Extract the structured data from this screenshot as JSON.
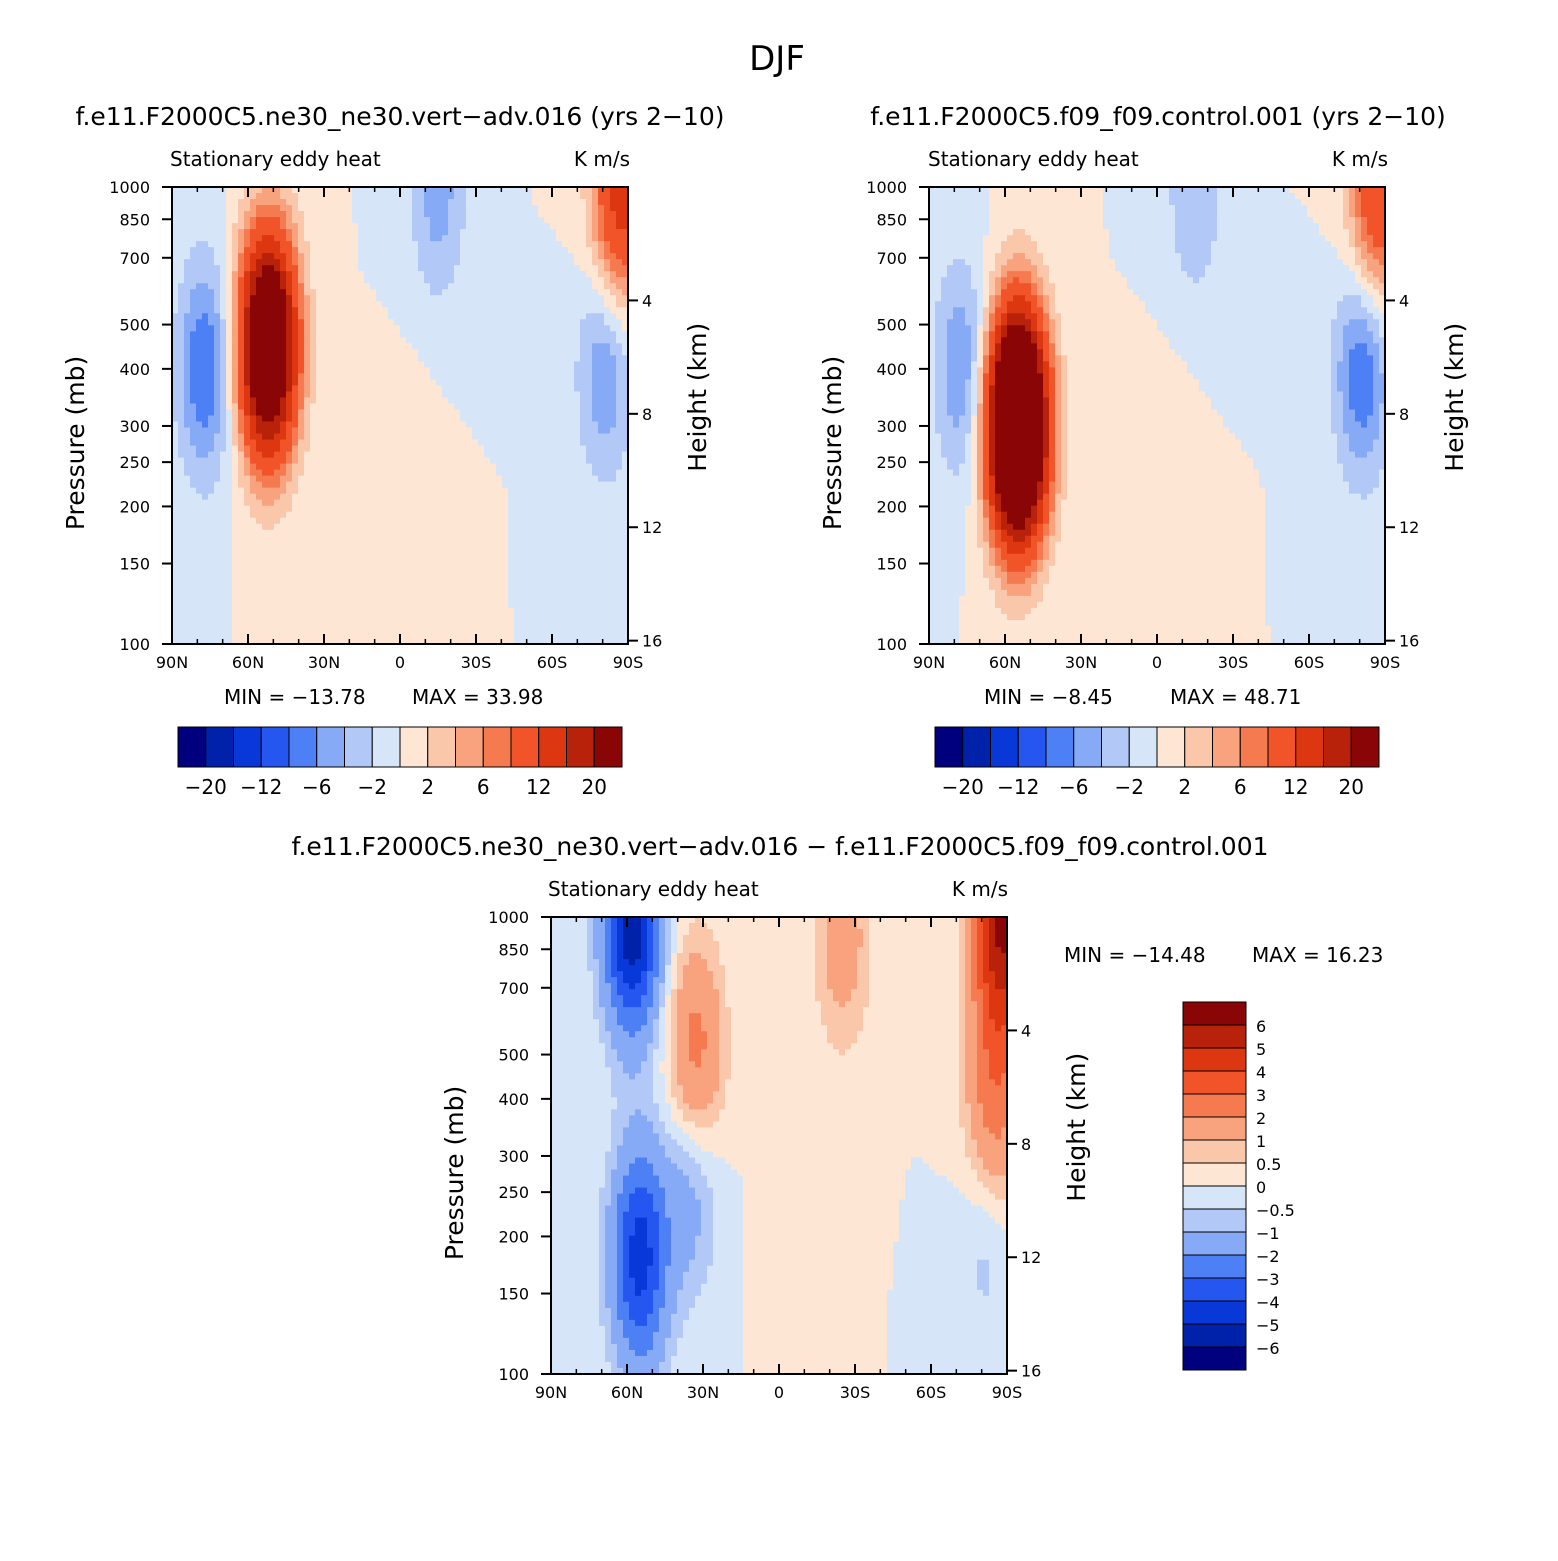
{
  "figure": {
    "title": "DJF"
  },
  "colors": {
    "absolute_scale": [
      "#00007f",
      "#0022aa",
      "#0838d8",
      "#2656f0",
      "#4e80f5",
      "#86aaf6",
      "#b2c8f6",
      "#d6e6f8",
      "#fde6d4",
      "#fbc7aa",
      "#f9a27e",
      "#f57a50",
      "#f05428",
      "#dd3712",
      "#b8220b",
      "#8a0606"
    ],
    "difference_scale": [
      "#00007f",
      "#0022aa",
      "#0838d8",
      "#2656f0",
      "#4e80f5",
      "#86aaf6",
      "#b2c8f6",
      "#d6e6f8",
      "#fde6d4",
      "#fbc7aa",
      "#f9a27e",
      "#f57a50",
      "#f05428",
      "#dd3712",
      "#b8220b",
      "#8a0606"
    ]
  },
  "chart_data": [
    {
      "type": "heatmap",
      "title": "f.e11.F2000C5.ne30_ne30.vert−adv.016 (yrs 2−10)",
      "subtitle_left": "Stationary eddy heat",
      "subtitle_right": "K m/s",
      "ylabel": "Pressure (mb)",
      "y2label": "Height (km)",
      "x_ticks": [
        "90N",
        "60N",
        "30N",
        "0",
        "30S",
        "60S",
        "90S"
      ],
      "y_ticks": [
        "100",
        "150",
        "200",
        "250",
        "300",
        "400",
        "500",
        "700",
        "850",
        "1000"
      ],
      "y_tick_values": [
        100,
        150,
        200,
        250,
        300,
        400,
        500,
        700,
        850,
        1000
      ],
      "y2_ticks": [
        "16",
        "12",
        "8",
        "4"
      ],
      "y2_tick_values": [
        16,
        12,
        8,
        4
      ],
      "min_label": "MIN = −13.78",
      "max_label": "MAX =  33.98",
      "min": -13.78,
      "max": 33.98,
      "contour_levels": [
        -20,
        -16,
        -12,
        -8,
        -6,
        -4,
        -2,
        0,
        2,
        4,
        6,
        8,
        12,
        16,
        20
      ],
      "colorbar_labels": [
        "−20",
        "−12",
        "−6",
        "−2",
        "2",
        "6",
        "12",
        "20"
      ],
      "features": [
        {
          "lat": 52,
          "p": 450,
          "value": 33.98
        },
        {
          "lat": 77,
          "p": 400,
          "value": -8
        },
        {
          "lat": -81,
          "p": 400,
          "value": -6
        },
        {
          "lat": -15,
          "p": 980,
          "value": -5
        },
        {
          "lat": -87,
          "p": 950,
          "value": 14
        },
        {
          "lat": -5,
          "p": 250,
          "value": 0.8
        }
      ]
    },
    {
      "type": "heatmap",
      "title": "f.e11.F2000C5.f09_f09.control.001 (yrs 2−10)",
      "subtitle_left": "Stationary eddy heat",
      "subtitle_right": "K m/s",
      "ylabel": "Pressure (mb)",
      "y2label": "Height (km)",
      "x_ticks": [
        "90N",
        "60N",
        "30N",
        "0",
        "30S",
        "60S",
        "90S"
      ],
      "y_ticks": [
        "100",
        "150",
        "200",
        "250",
        "300",
        "400",
        "500",
        "700",
        "850",
        "1000"
      ],
      "y_tick_values": [
        100,
        150,
        200,
        250,
        300,
        400,
        500,
        700,
        850,
        1000
      ],
      "y2_ticks": [
        "16",
        "12",
        "8",
        "4"
      ],
      "y2_tick_values": [
        16,
        12,
        8,
        4
      ],
      "min_label": "MIN =   −8.45",
      "max_label": "MAX =  48.71",
      "min": -8.45,
      "max": 48.71,
      "contour_levels": [
        -20,
        -16,
        -12,
        -8,
        -6,
        -4,
        -2,
        0,
        2,
        4,
        6,
        8,
        12,
        16,
        20
      ],
      "colorbar_labels": [
        "−20",
        "−12",
        "−6",
        "−2",
        "2",
        "6",
        "12",
        "20"
      ],
      "features": [
        {
          "lat": 55,
          "p": 300,
          "value": 48.71
        },
        {
          "lat": 77,
          "p": 400,
          "value": -6
        },
        {
          "lat": -81,
          "p": 400,
          "value": -8
        },
        {
          "lat": -15,
          "p": 980,
          "value": -4
        },
        {
          "lat": -87,
          "p": 950,
          "value": 12
        },
        {
          "lat": -5,
          "p": 250,
          "value": 0.8
        }
      ]
    },
    {
      "type": "heatmap",
      "title": "f.e11.F2000C5.ne30_ne30.vert−adv.016 − f.e11.F2000C5.f09_f09.control.001",
      "subtitle_left": "Stationary eddy heat",
      "subtitle_right": "K m/s",
      "ylabel": "Pressure (mb)",
      "y2label": "Height (km)",
      "x_ticks": [
        "90N",
        "60N",
        "30N",
        "0",
        "30S",
        "60S",
        "90S"
      ],
      "y_ticks": [
        "100",
        "150",
        "200",
        "250",
        "300",
        "400",
        "500",
        "700",
        "850",
        "1000"
      ],
      "y_tick_values": [
        100,
        150,
        200,
        250,
        300,
        400,
        500,
        700,
        850,
        1000
      ],
      "y2_ticks": [
        "16",
        "12",
        "8",
        "4"
      ],
      "y2_tick_values": [
        16,
        12,
        8,
        4
      ],
      "min_label": "MIN = −14.48",
      "max_label": "MAX =  16.23",
      "min": -14.48,
      "max": 16.23,
      "contour_levels": [
        -6,
        -5,
        -4,
        -3,
        -2,
        -1,
        -0.5,
        0,
        0.5,
        1,
        2,
        3,
        4,
        5,
        6
      ],
      "colorbar_labels": [
        "6",
        "5",
        "4",
        "3",
        "2",
        "1",
        "0.5",
        "0",
        "−0.5",
        "−1",
        "−2",
        "−3",
        "−4",
        "−5",
        "−6"
      ],
      "features": [
        {
          "lat": 55,
          "p": 180,
          "value": -4.5
        },
        {
          "lat": 33,
          "p": 500,
          "value": 2.5
        },
        {
          "lat": 35,
          "p": 260,
          "value": -1.5
        },
        {
          "lat": -85,
          "p": 400,
          "value": 2.5
        },
        {
          "lat": -25,
          "p": 900,
          "value": 1.5
        },
        {
          "lat": -5,
          "p": 200,
          "value": 0.3
        },
        {
          "lat": -82,
          "p": 200,
          "value": -0.8
        },
        {
          "lat": 58,
          "p": 990,
          "value": -6
        },
        {
          "lat": -88,
          "p": 960,
          "value": 6
        }
      ]
    }
  ]
}
